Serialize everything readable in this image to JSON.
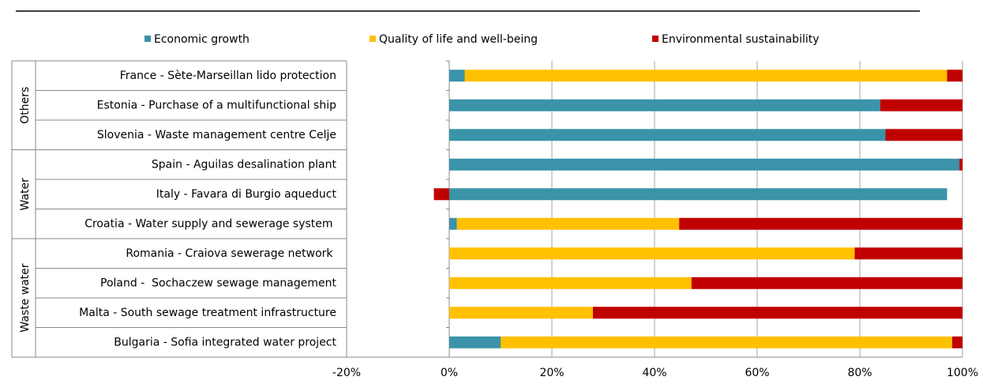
{
  "chart_data": {
    "type": "stacked_bar_horizontal",
    "categories": [
      "France - Sète-Marseillan lido protection",
      "Estonia - Purchase of a multifunctional ship",
      "Slovenia - Waste management centre Celje",
      "Spain - Aguilas desalination plant",
      "Italy - Favara di Burgio aqueduct",
      "Croatia - Water supply and sewerage system ",
      "Romania - Craiova sewerage network ",
      "Poland -  Sochaczew sewage management",
      "Malta - South sewage treatment infrastructure",
      "Bulgaria - Sofia integrated water project"
    ],
    "groups": [
      "Others",
      "Others",
      "Others",
      "Water",
      "Water",
      "Water",
      "Waste water",
      "Waste water",
      "Waste water",
      "Waste water"
    ],
    "series": [
      {
        "name": "Economic growth",
        "color": "#3a93a8",
        "values": [
          3,
          84,
          85,
          99.4,
          97,
          1.5,
          0,
          0,
          0,
          10
        ]
      },
      {
        "name": "Quality of life and well-being",
        "color": "#ffc000",
        "values": [
          94,
          0,
          0,
          0,
          0,
          43.3,
          79,
          47.2,
          28,
          88
        ]
      },
      {
        "name": "Environmental sustainability",
        "color": "#c00000",
        "values": [
          3,
          16,
          15,
          0.6,
          -3,
          55.2,
          21,
          52.8,
          72,
          2
        ]
      }
    ],
    "xlim": [
      -20,
      100
    ],
    "xticks": [
      {
        "value": -20,
        "label": "-20%"
      },
      {
        "value": 0,
        "label": "0%"
      },
      {
        "value": 20,
        "label": "20%"
      },
      {
        "value": 40,
        "label": "40%"
      },
      {
        "value": 60,
        "label": "60%"
      },
      {
        "value": 80,
        "label": "80%"
      },
      {
        "value": 100,
        "label": "100%"
      }
    ],
    "grid": true,
    "legend": "top"
  }
}
